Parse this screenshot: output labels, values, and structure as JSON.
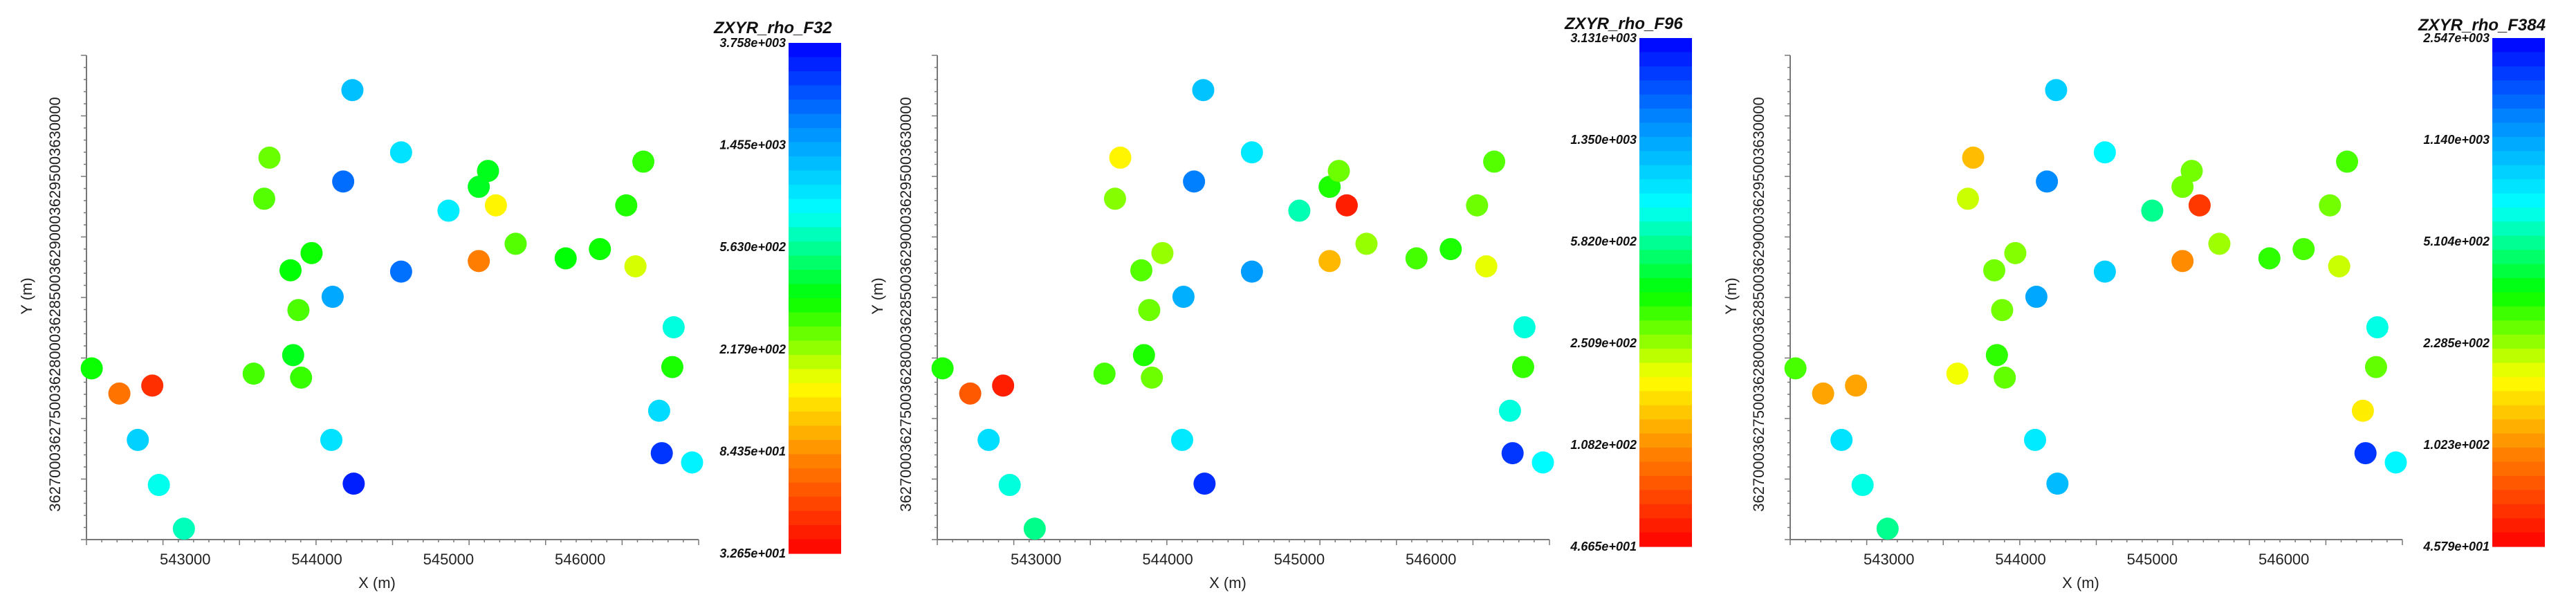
{
  "chart_data": [
    {
      "type": "scatter",
      "title": "ZXYR_rho_F32",
      "xlabel": "X (m)",
      "ylabel": "Y (m)",
      "x_ticks": [
        "543000",
        "544000",
        "545000",
        "546000"
      ],
      "y_tick_labels": [
        "3627000",
        "3627500",
        "3628000",
        "3628500",
        "3629000",
        "3629500",
        "3630000"
      ],
      "colorbar_labels": [
        "3.758e+003",
        "1.455e+003",
        "5.630e+002",
        "2.179e+002",
        "8.435e+001",
        "3.265e+001"
      ],
      "colorbar_log_range": [
        1.514,
        3.575
      ],
      "xlim": [
        542250,
        546900
      ],
      "ylim": [
        3626950,
        3630500
      ],
      "log_values": [
        2.53,
        1.85,
        1.65,
        3.03,
        2.87,
        2.8,
        2.45,
        2.4,
        2.43,
        2.55,
        2.58,
        2.44,
        2.47,
        2.53,
        3.15,
        3.31,
        3.08,
        3.5,
        2.98,
        2.98,
        3.3,
        2.95,
        2.59,
        2.58,
        1.88,
        2.17,
        2.43,
        2.55,
        2.53,
        2.25,
        2.5,
        2.48,
        2.85,
        2.51,
        3.0,
        3.45,
        2.93
      ]
    },
    {
      "type": "scatter",
      "title": "ZXYR_rho_F96",
      "xlabel": "X (m)",
      "ylabel": "Y (m)",
      "x_ticks": [
        "543000",
        "544000",
        "545000",
        "546000"
      ],
      "y_tick_labels": [
        "3627000",
        "3627500",
        "3628000",
        "3628500",
        "3629000",
        "3629500",
        "3630000"
      ],
      "colorbar_labels": [
        "3.131e+003",
        "1.350e+003",
        "5.820e+002",
        "2.509e+002",
        "1.082e+002",
        "4.665e+001"
      ],
      "colorbar_log_range": [
        1.669,
        3.496
      ],
      "xlim": [
        542250,
        546900
      ],
      "ylim": [
        3626950,
        3630500
      ],
      "log_values": [
        2.55,
        1.9,
        1.75,
        2.98,
        2.85,
        2.75,
        2.5,
        2.25,
        2.42,
        2.48,
        2.55,
        2.45,
        2.45,
        2.4,
        3.1,
        3.22,
        3.05,
        3.4,
        2.95,
        2.95,
        3.15,
        2.8,
        2.55,
        2.45,
        2.12,
        1.75,
        2.4,
        2.5,
        2.55,
        2.3,
        2.45,
        2.48,
        2.85,
        2.52,
        2.85,
        3.38,
        2.9
      ]
    },
    {
      "type": "scatter",
      "title": "ZXYR_rho_F384",
      "xlabel": "X (m)",
      "ylabel": "Y (m)",
      "x_ticks": [
        "543000",
        "544000",
        "545000",
        "546000"
      ],
      "y_tick_labels": [
        "3627000",
        "3627500",
        "3628000",
        "3628500",
        "3629000",
        "3629500",
        "3630000"
      ],
      "colorbar_labels": [
        "2.547e+003",
        "1.140e+003",
        "5.104e+002",
        "2.285e+002",
        "1.023e+002",
        "4.579e+001"
      ],
      "colorbar_log_range": [
        1.661,
        3.406
      ],
      "xlim": [
        542250,
        546900
      ],
      "ylim": [
        3626950,
        3630500
      ],
      "log_values": [
        2.45,
        2.05,
        2.05,
        2.9,
        2.8,
        2.7,
        2.25,
        2.1,
        2.3,
        2.4,
        2.48,
        2.4,
        2.42,
        2.38,
        3.05,
        3.12,
        2.95,
        3.0,
        2.88,
        2.85,
        2.95,
        2.7,
        2.4,
        2.4,
        2.0,
        1.8,
        2.35,
        2.48,
        2.45,
        2.3,
        2.4,
        2.45,
        2.8,
        2.42,
        2.2,
        3.3,
        2.85
      ]
    }
  ],
  "stations": {
    "x": [
      542290,
      542500,
      542750,
      542640,
      542800,
      542990,
      543520,
      543640,
      543600,
      543800,
      543820,
      543860,
      543880,
      543960,
      544120,
      544200,
      544270,
      544280,
      544110,
      544640,
      544640,
      545000,
      545230,
      545300,
      545230,
      545360,
      545510,
      545890,
      546150,
      546420,
      546350,
      546480,
      546710,
      546700,
      546600,
      546620,
      546850
    ],
    "y": [
      3628190,
      3628000,
      3628060,
      3627650,
      3627310,
      3626980,
      3628150,
      3629780,
      3629470,
      3628930,
      3628290,
      3628630,
      3628120,
      3629060,
      3628730,
      3629600,
      3630290,
      3627320,
      3627650,
      3629820,
      3628920,
      3629380,
      3629560,
      3629680,
      3629000,
      3629420,
      3629130,
      3629020,
      3629090,
      3628960,
      3629420,
      3629750,
      3628500,
      3628200,
      3627870,
      3627550,
      3627480
    ]
  }
}
